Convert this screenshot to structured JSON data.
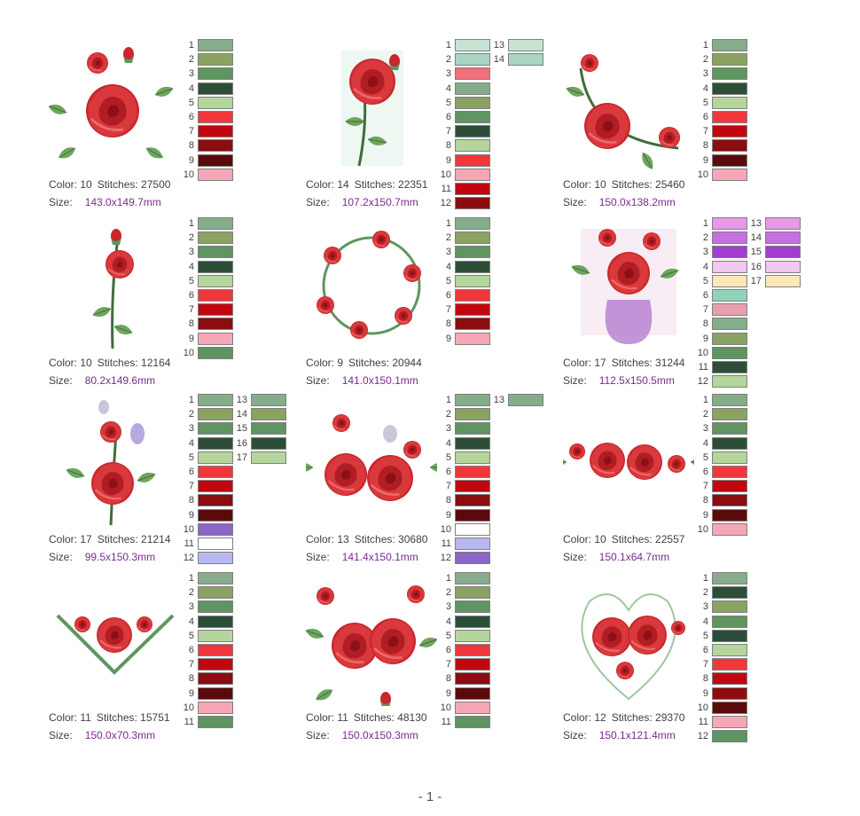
{
  "page_number": "- 1 -",
  "colors": {
    "sage": "#86ad8b",
    "olive": "#8aa262",
    "green": "#5e9560",
    "dkgreen": "#2c4e38",
    "ltgreen": "#b4d69c",
    "red": "#f0383c",
    "dkred": "#c20610",
    "maroon": "#8b0d10",
    "wine": "#5b0a0c",
    "pink": "#f5a7b8",
    "mint": "#c6e3d4",
    "mint2": "#a9d6c2",
    "salmon": "#f0707c",
    "white": "#ffffff",
    "lavender": "#b8b8f0",
    "purple": "#8a66c8",
    "lilac": "#e59ae8",
    "violet": "#c470e0",
    "magenta": "#a43cd0",
    "pale": "#f0c8f0",
    "cream": "#fbe8b8",
    "aqua": "#8fd4b8",
    "rose": "#e8a0b0"
  },
  "designs": [
    {
      "id": "d1",
      "color_label": "Color: 10",
      "stitches_label": "Stitches: 27500",
      "size_label": "Size:",
      "size_value": "143.0x149.7mm",
      "swatches": [
        [
          "1",
          "sage"
        ],
        [
          "2",
          "olive"
        ],
        [
          "3",
          "green"
        ],
        [
          "4",
          "dkgreen"
        ],
        [
          "5",
          "ltgreen"
        ],
        [
          "6",
          "red"
        ],
        [
          "7",
          "dkred"
        ],
        [
          "8",
          "maroon"
        ],
        [
          "9",
          "wine"
        ],
        [
          "10",
          "pink"
        ]
      ]
    },
    {
      "id": "d2",
      "color_label": "Color: 14",
      "stitches_label": "Stitches: 22351",
      "size_label": "Size:",
      "size_value": "107.2x150.7mm",
      "swatches": [
        [
          "1",
          "mint"
        ],
        [
          "2",
          "mint2"
        ],
        [
          "3",
          "salmon"
        ],
        [
          "4",
          "sage"
        ],
        [
          "5",
          "olive"
        ],
        [
          "6",
          "green"
        ],
        [
          "7",
          "dkgreen"
        ],
        [
          "8",
          "ltgreen"
        ],
        [
          "9",
          "red"
        ],
        [
          "10",
          "pink"
        ],
        [
          "11",
          "dkred"
        ],
        [
          "12",
          "maroon"
        ],
        [
          "13",
          "mint"
        ],
        [
          "14",
          "mint2"
        ]
      ]
    },
    {
      "id": "d3",
      "color_label": "Color: 10",
      "stitches_label": "Stitches: 25460",
      "size_label": "Size:",
      "size_value": "150.0x138.2mm",
      "swatches": [
        [
          "1",
          "sage"
        ],
        [
          "2",
          "olive"
        ],
        [
          "3",
          "green"
        ],
        [
          "4",
          "dkgreen"
        ],
        [
          "5",
          "ltgreen"
        ],
        [
          "6",
          "red"
        ],
        [
          "7",
          "dkred"
        ],
        [
          "8",
          "maroon"
        ],
        [
          "9",
          "wine"
        ],
        [
          "10",
          "pink"
        ]
      ]
    },
    {
      "id": "d4",
      "color_label": "Color: 10",
      "stitches_label": "Stitches: 12164",
      "size_label": "Size:",
      "size_value": "80.2x149.6mm",
      "swatches": [
        [
          "1",
          "sage"
        ],
        [
          "2",
          "olive"
        ],
        [
          "3",
          "green"
        ],
        [
          "4",
          "dkgreen"
        ],
        [
          "5",
          "ltgreen"
        ],
        [
          "6",
          "red"
        ],
        [
          "7",
          "dkred"
        ],
        [
          "8",
          "maroon"
        ],
        [
          "9",
          "pink"
        ],
        [
          "10",
          "green"
        ]
      ]
    },
    {
      "id": "d5",
      "color_label": "Color: 9",
      "stitches_label": "Stitches: 20944",
      "size_label": "Size:",
      "size_value": "141.0x150.1mm",
      "swatches": [
        [
          "1",
          "sage"
        ],
        [
          "2",
          "olive"
        ],
        [
          "3",
          "green"
        ],
        [
          "4",
          "dkgreen"
        ],
        [
          "5",
          "ltgreen"
        ],
        [
          "6",
          "red"
        ],
        [
          "7",
          "dkred"
        ],
        [
          "8",
          "maroon"
        ],
        [
          "9",
          "pink"
        ]
      ]
    },
    {
      "id": "d6",
      "color_label": "Color: 17",
      "stitches_label": "Stitches: 31244",
      "size_label": "Size:",
      "size_value": "112.5x150.5mm",
      "swatches": [
        [
          "1",
          "lilac"
        ],
        [
          "2",
          "violet"
        ],
        [
          "3",
          "magenta"
        ],
        [
          "4",
          "pale"
        ],
        [
          "5",
          "cream"
        ],
        [
          "6",
          "aqua"
        ],
        [
          "7",
          "rose"
        ],
        [
          "8",
          "sage"
        ],
        [
          "9",
          "olive"
        ],
        [
          "10",
          "green"
        ],
        [
          "11",
          "dkgreen"
        ],
        [
          "12",
          "ltgreen"
        ],
        [
          "13",
          "lilac"
        ],
        [
          "14",
          "violet"
        ],
        [
          "15",
          "magenta"
        ],
        [
          "16",
          "pale"
        ],
        [
          "17",
          "cream"
        ]
      ]
    },
    {
      "id": "d7",
      "color_label": "Color: 17",
      "stitches_label": "Stitches: 21214",
      "size_label": "Size:",
      "size_value": "99.5x150.3mm",
      "swatches": [
        [
          "1",
          "sage"
        ],
        [
          "2",
          "olive"
        ],
        [
          "3",
          "green"
        ],
        [
          "4",
          "dkgreen"
        ],
        [
          "5",
          "ltgreen"
        ],
        [
          "6",
          "red"
        ],
        [
          "7",
          "dkred"
        ],
        [
          "8",
          "maroon"
        ],
        [
          "9",
          "wine"
        ],
        [
          "10",
          "purple"
        ],
        [
          "11",
          "white"
        ],
        [
          "12",
          "lavender"
        ],
        [
          "13",
          "sage"
        ],
        [
          "14",
          "olive"
        ],
        [
          "15",
          "green"
        ],
        [
          "16",
          "dkgreen"
        ],
        [
          "17",
          "ltgreen"
        ]
      ]
    },
    {
      "id": "d8",
      "color_label": "Color: 13",
      "stitches_label": "Stitches: 30680",
      "size_label": "Size:",
      "size_value": "141.4x150.1mm",
      "swatches": [
        [
          "1",
          "sage"
        ],
        [
          "2",
          "olive"
        ],
        [
          "3",
          "green"
        ],
        [
          "4",
          "dkgreen"
        ],
        [
          "5",
          "ltgreen"
        ],
        [
          "6",
          "red"
        ],
        [
          "7",
          "dkred"
        ],
        [
          "8",
          "maroon"
        ],
        [
          "9",
          "wine"
        ],
        [
          "10",
          "white"
        ],
        [
          "11",
          "lavender"
        ],
        [
          "12",
          "purple"
        ],
        [
          "13",
          "sage"
        ]
      ]
    },
    {
      "id": "d9",
      "color_label": "Color: 10",
      "stitches_label": "Stitches: 22557",
      "size_label": "Size:",
      "size_value": "150.1x64.7mm",
      "swatches": [
        [
          "1",
          "sage"
        ],
        [
          "2",
          "olive"
        ],
        [
          "3",
          "green"
        ],
        [
          "4",
          "dkgreen"
        ],
        [
          "5",
          "ltgreen"
        ],
        [
          "6",
          "red"
        ],
        [
          "7",
          "dkred"
        ],
        [
          "8",
          "maroon"
        ],
        [
          "9",
          "wine"
        ],
        [
          "10",
          "pink"
        ]
      ]
    },
    {
      "id": "d10",
      "color_label": "Color: 11",
      "stitches_label": "Stitches: 15751",
      "size_label": "Size:",
      "size_value": "150.0x70.3mm",
      "swatches": [
        [
          "1",
          "sage"
        ],
        [
          "2",
          "olive"
        ],
        [
          "3",
          "green"
        ],
        [
          "4",
          "dkgreen"
        ],
        [
          "5",
          "ltgreen"
        ],
        [
          "6",
          "red"
        ],
        [
          "7",
          "dkred"
        ],
        [
          "8",
          "maroon"
        ],
        [
          "9",
          "wine"
        ],
        [
          "10",
          "pink"
        ],
        [
          "11",
          "green"
        ]
      ]
    },
    {
      "id": "d11",
      "color_label": "Color: 11",
      "stitches_label": "Stitches: 48130",
      "size_label": "Size:",
      "size_value": "150.0x150.3mm",
      "swatches": [
        [
          "1",
          "sage"
        ],
        [
          "2",
          "olive"
        ],
        [
          "3",
          "green"
        ],
        [
          "4",
          "dkgreen"
        ],
        [
          "5",
          "ltgreen"
        ],
        [
          "6",
          "red"
        ],
        [
          "7",
          "dkred"
        ],
        [
          "8",
          "maroon"
        ],
        [
          "9",
          "wine"
        ],
        [
          "10",
          "pink"
        ],
        [
          "11",
          "green"
        ]
      ]
    },
    {
      "id": "d12",
      "color_label": "Color: 12",
      "stitches_label": "Stitches: 29370",
      "size_label": "Size:",
      "size_value": "150.1x121.4mm",
      "swatches": [
        [
          "1",
          "sage"
        ],
        [
          "2",
          "dkgreen"
        ],
        [
          "3",
          "olive"
        ],
        [
          "4",
          "green"
        ],
        [
          "5",
          "dkgreen"
        ],
        [
          "6",
          "ltgreen"
        ],
        [
          "7",
          "red"
        ],
        [
          "8",
          "dkred"
        ],
        [
          "9",
          "maroon"
        ],
        [
          "10",
          "wine"
        ],
        [
          "11",
          "pink"
        ],
        [
          "12",
          "green"
        ]
      ]
    }
  ]
}
